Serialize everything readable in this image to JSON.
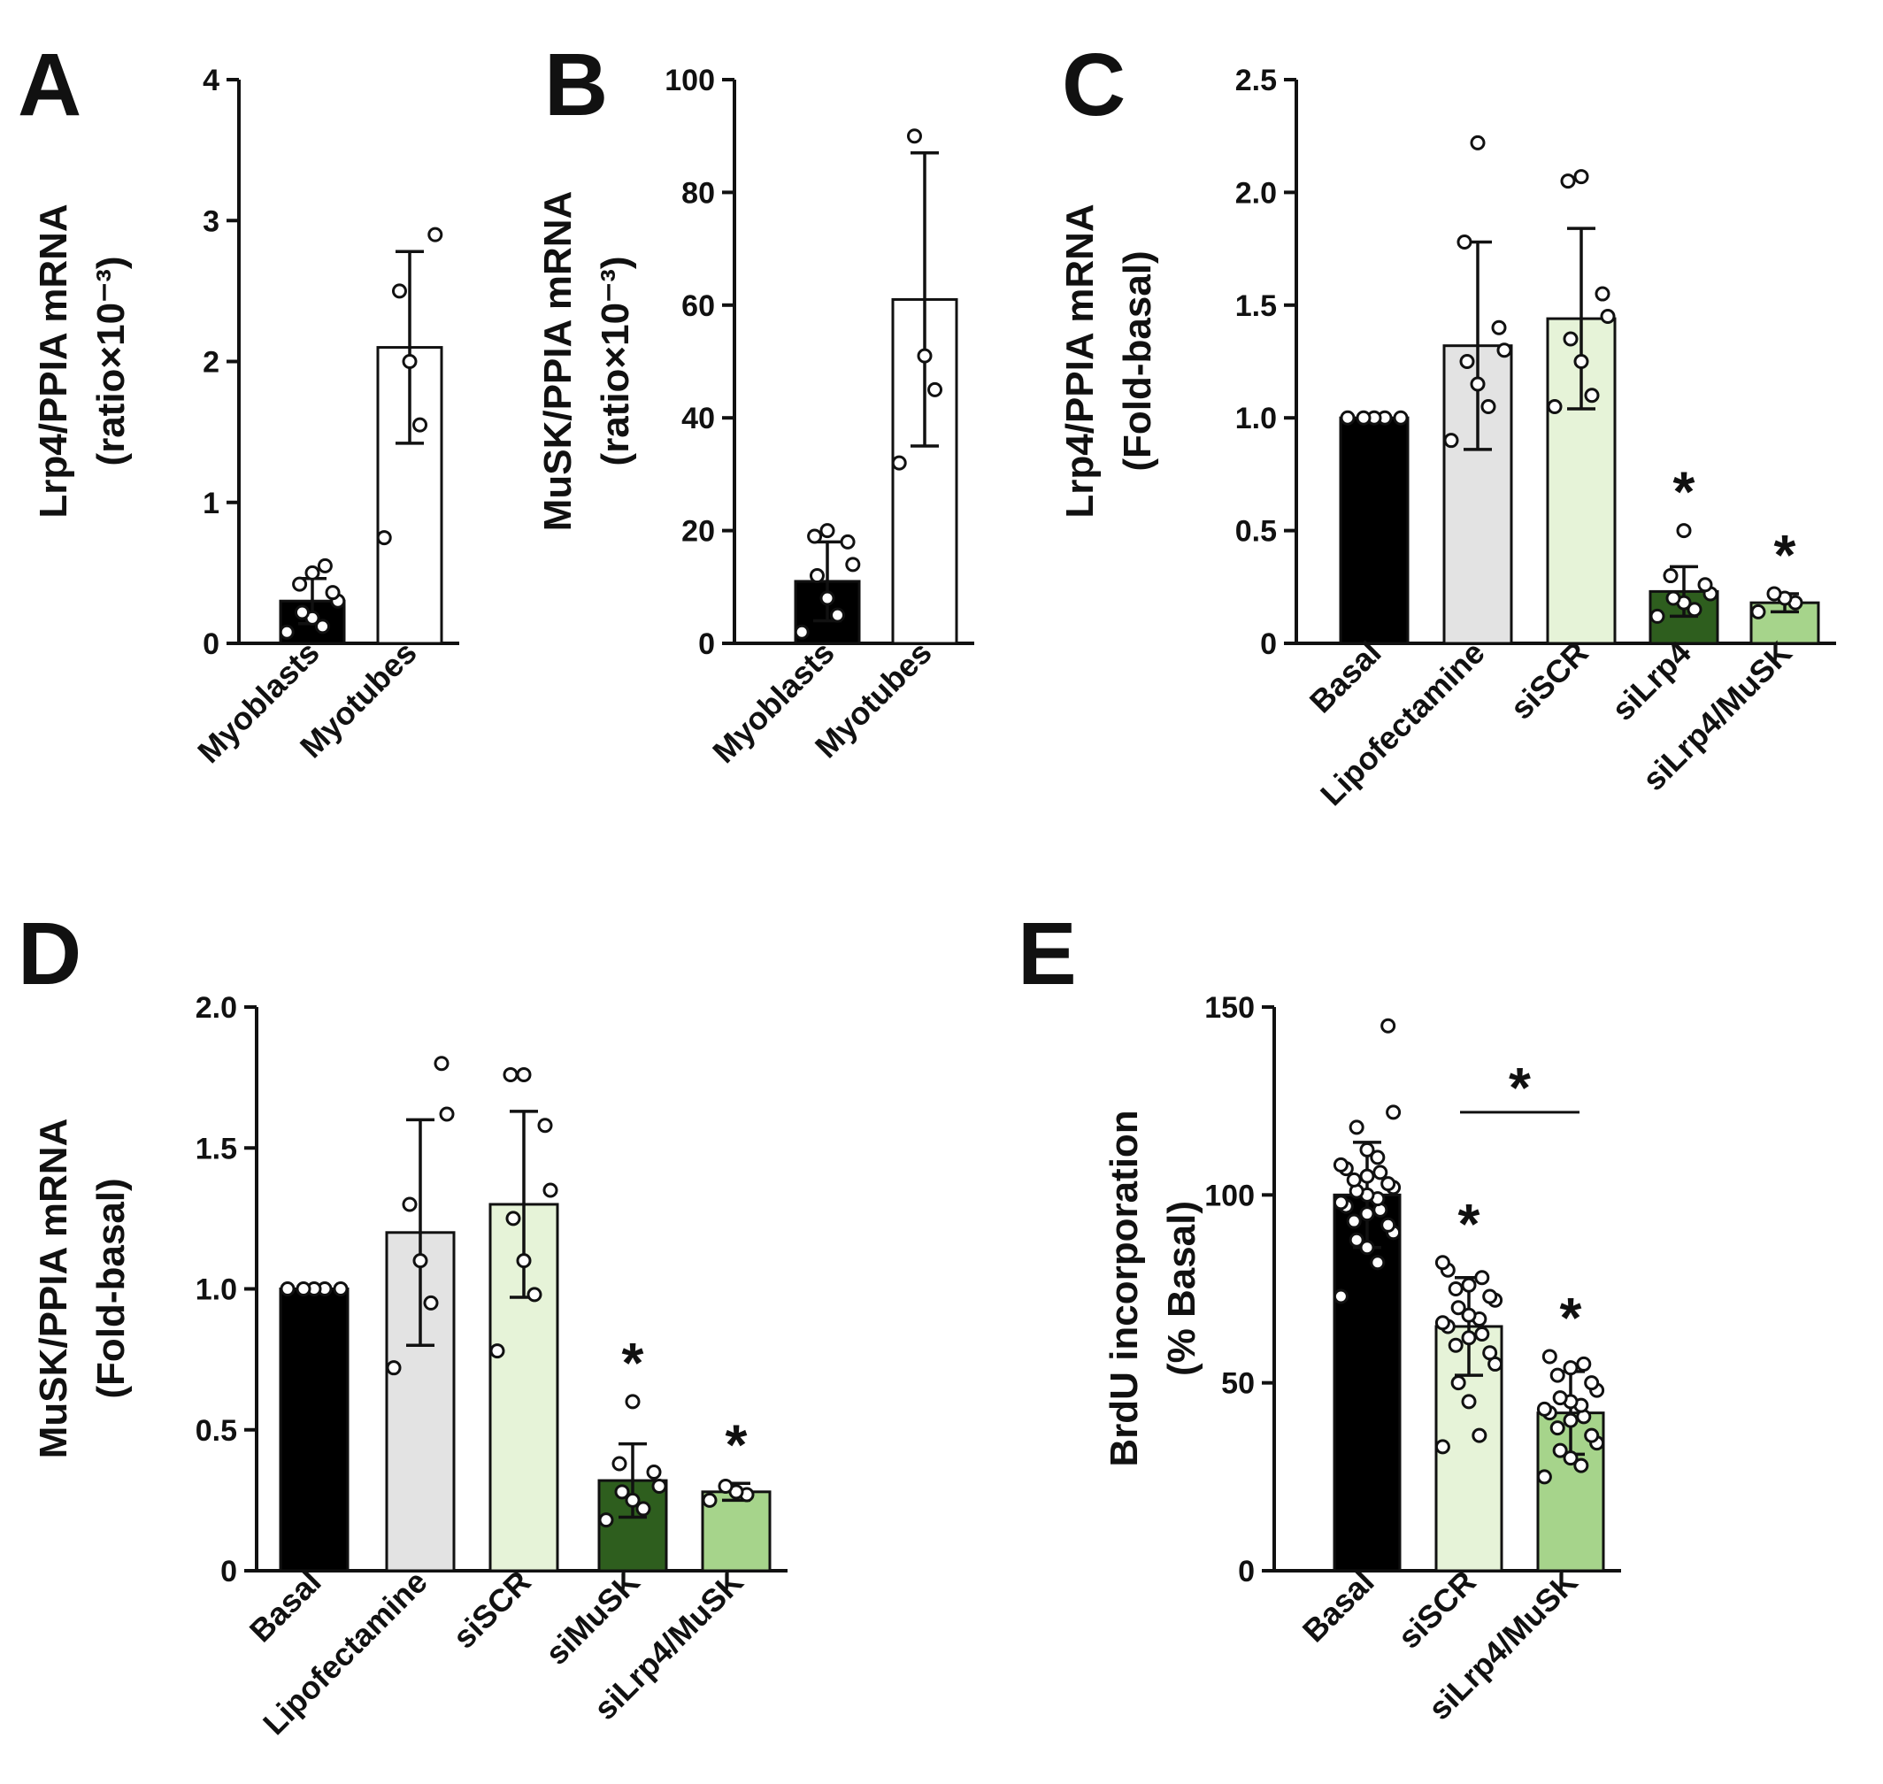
{
  "colors": {
    "black": "#000000",
    "light_gray": "#e3e3e3",
    "pale_green": "#e6f3d8",
    "dark_green": "#2e5e1e",
    "light_green": "#a6d48b",
    "white": "#ffffff"
  },
  "chart_data": [
    {
      "type": "bar",
      "panel": "A",
      "ylabel_line1": "Lrp4/PPIA mRNA",
      "ylabel_line2": "(ratio×10⁻³)",
      "ylim": [
        0,
        4
      ],
      "yticks": [
        "0",
        "1",
        "2",
        "3",
        "4"
      ],
      "categories": [
        "Myoblasts",
        "Myotubes"
      ],
      "values": [
        0.3,
        2.1
      ],
      "errors": [
        0.16,
        0.68
      ],
      "fills": [
        "black",
        "white"
      ],
      "points": [
        [
          0.08,
          0.12,
          0.18,
          0.22,
          0.3,
          0.36,
          0.42,
          0.5,
          0.55
        ],
        [
          0.75,
          1.55,
          2.0,
          2.5,
          2.9
        ]
      ],
      "stars": [
        "",
        ""
      ]
    },
    {
      "type": "bar",
      "panel": "B",
      "ylabel_line1": "MuSK/PPIA mRNA",
      "ylabel_line2": "(ratio×10⁻³)",
      "ylim": [
        0,
        100
      ],
      "yticks": [
        "0",
        "20",
        "40",
        "60",
        "80",
        "100"
      ],
      "categories": [
        "Myoblasts",
        "Myotubes"
      ],
      "values": [
        11,
        61
      ],
      "errors": [
        7,
        26
      ],
      "fills": [
        "black",
        "white"
      ],
      "points": [
        [
          2,
          5,
          8,
          12,
          14,
          18,
          19,
          20
        ],
        [
          32,
          45,
          51,
          90
        ]
      ],
      "stars": [
        "",
        ""
      ]
    },
    {
      "type": "bar",
      "panel": "C",
      "ylabel_line1": "Lrp4/PPIA mRNA",
      "ylabel_line2": "(Fold-basal)",
      "ylim": [
        0,
        2.5
      ],
      "yticks": [
        "0",
        "0.5",
        "1.0",
        "1.5",
        "2.0",
        "2.5"
      ],
      "categories": [
        "Basal",
        "Lipofectamine",
        "siSCR",
        "siLrp4",
        "siLrp4/MuSK"
      ],
      "values": [
        1.0,
        1.32,
        1.44,
        0.23,
        0.18
      ],
      "errors": [
        0,
        0.46,
        0.4,
        0.11,
        0.04
      ],
      "fills": [
        "black",
        "light_gray",
        "pale_green",
        "dark_green",
        "light_green"
      ],
      "points": [
        [
          1.0,
          1.0,
          1.0,
          1.0,
          1.0
        ],
        [
          0.9,
          1.05,
          1.15,
          1.25,
          1.3,
          1.4,
          1.78,
          2.22
        ],
        [
          1.05,
          1.1,
          1.25,
          1.35,
          1.45,
          1.55,
          2.05,
          2.07
        ],
        [
          0.12,
          0.15,
          0.18,
          0.2,
          0.22,
          0.26,
          0.3,
          0.5
        ],
        [
          0.14,
          0.18,
          0.2,
          0.22
        ]
      ],
      "stars": [
        "",
        "",
        "",
        "*",
        "*"
      ]
    },
    {
      "type": "bar",
      "panel": "D",
      "ylabel_line1": "MuSK/PPIA mRNA",
      "ylabel_line2": "(Fold-basal)",
      "ylim": [
        0,
        2.0
      ],
      "yticks": [
        "0",
        "0.5",
        "1.0",
        "1.5",
        "2.0"
      ],
      "categories": [
        "Basal",
        "Lipofectamine",
        "siSCR",
        "siMuSK",
        "siLrp4/MuSK"
      ],
      "values": [
        1.0,
        1.2,
        1.3,
        0.32,
        0.28
      ],
      "errors": [
        0,
        0.4,
        0.33,
        0.13,
        0.03
      ],
      "fills": [
        "black",
        "light_gray",
        "pale_green",
        "dark_green",
        "light_green"
      ],
      "points": [
        [
          1.0,
          1.0,
          1.0,
          1.0,
          1.0
        ],
        [
          0.72,
          0.95,
          1.1,
          1.3,
          1.62,
          1.8
        ],
        [
          0.78,
          0.98,
          1.1,
          1.25,
          1.35,
          1.58,
          1.76,
          1.76
        ],
        [
          0.18,
          0.22,
          0.25,
          0.28,
          0.3,
          0.35,
          0.38,
          0.6
        ],
        [
          0.25,
          0.27,
          0.28,
          0.3
        ]
      ],
      "stars": [
        "",
        "",
        "",
        "*",
        "*"
      ]
    },
    {
      "type": "bar",
      "panel": "E",
      "ylabel_line1": "BrdU incorporation",
      "ylabel_line2": "(% Basal)",
      "ylim": [
        0,
        150
      ],
      "yticks": [
        "0",
        "50",
        "100",
        "150"
      ],
      "categories": [
        "Basal",
        "siSCR",
        "siLrp4/MuSK"
      ],
      "values": [
        100,
        65,
        42
      ],
      "errors": [
        14,
        13,
        11
      ],
      "fills": [
        "black",
        "pale_green",
        "light_green"
      ],
      "points": [
        [
          73,
          82,
          86,
          88,
          90,
          92,
          93,
          95,
          96,
          97,
          98,
          99,
          100,
          101,
          102,
          103,
          104,
          105,
          106,
          107,
          108,
          110,
          112,
          118,
          122,
          145
        ],
        [
          33,
          36,
          45,
          50,
          55,
          58,
          60,
          62,
          63,
          65,
          66,
          67,
          68,
          70,
          72,
          73,
          75,
          76,
          78,
          80,
          82
        ],
        [
          25,
          28,
          30,
          32,
          34,
          36,
          38,
          40,
          41,
          42,
          43,
          44,
          45,
          46,
          48,
          50,
          52,
          54,
          55,
          57
        ]
      ],
      "stars": [
        "",
        "*",
        "*"
      ],
      "bracket": {
        "from": 1,
        "to": 2,
        "label": "*"
      }
    }
  ]
}
